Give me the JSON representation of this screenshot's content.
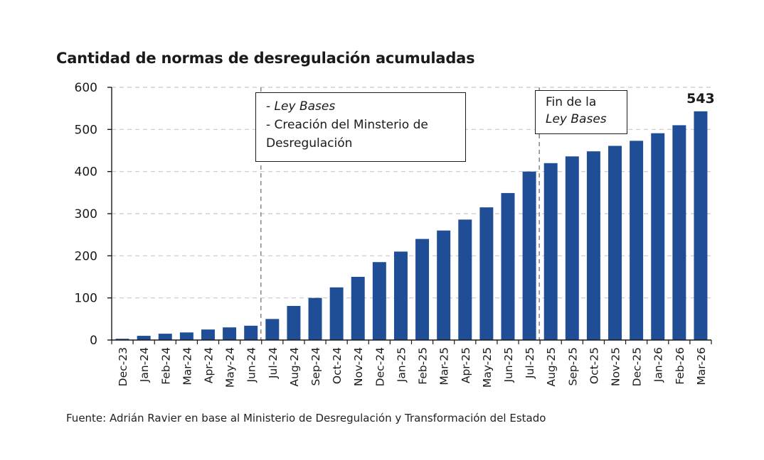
{
  "title": "Cantidad de normas de desregulación acumuladas",
  "source": "Fuente: Adrián Ravier en base al Ministerio de Desregulación y Transformación del Estado",
  "annotations": {
    "box1": {
      "line1_prefix": "- ",
      "line1_italic": "Ley Bases",
      "line2": "- Creación del Minsterio de",
      "line3": "Desregulación"
    },
    "box2": {
      "line1": "Fin de la",
      "line2_italic": "Ley Bases"
    }
  },
  "colors": {
    "bar": "#1f4e96",
    "grid": "#c8c8c8",
    "vline": "#8c8c8c",
    "axis": "#1a1a1a"
  },
  "chart_data": {
    "type": "bar",
    "categories": [
      "Dec-23",
      "Jan-24",
      "Feb-24",
      "Mar-24",
      "Apr-24",
      "May-24",
      "Jun-24",
      "Jul-24",
      "Aug-24",
      "Sep-24",
      "Oct-24",
      "Nov-24",
      "Dec-24",
      "Jan-25",
      "Feb-25",
      "Mar-25",
      "Apr-25",
      "May-25",
      "Jun-25",
      "Jul-25",
      "Aug-25",
      "Sep-25",
      "Oct-25",
      "Nov-25",
      "Dec-25",
      "Jan-26",
      "Feb-26",
      "Mar-26"
    ],
    "values": [
      3,
      10,
      15,
      18,
      25,
      30,
      34,
      50,
      81,
      100,
      125,
      150,
      185,
      210,
      240,
      260,
      286,
      315,
      349,
      400,
      420,
      436,
      448,
      461,
      473,
      491,
      510,
      543
    ],
    "ylim": [
      0,
      600
    ],
    "yticks": [
      0,
      100,
      200,
      300,
      400,
      500,
      600
    ],
    "grid": true,
    "vertical_markers": [
      "Jun-24",
      "Jul-25"
    ],
    "data_labels": [
      {
        "category": "Mar-26",
        "text": "543"
      }
    ],
    "title": "Cantidad de normas de desregulación acumuladas",
    "xlabel": "",
    "ylabel": ""
  }
}
